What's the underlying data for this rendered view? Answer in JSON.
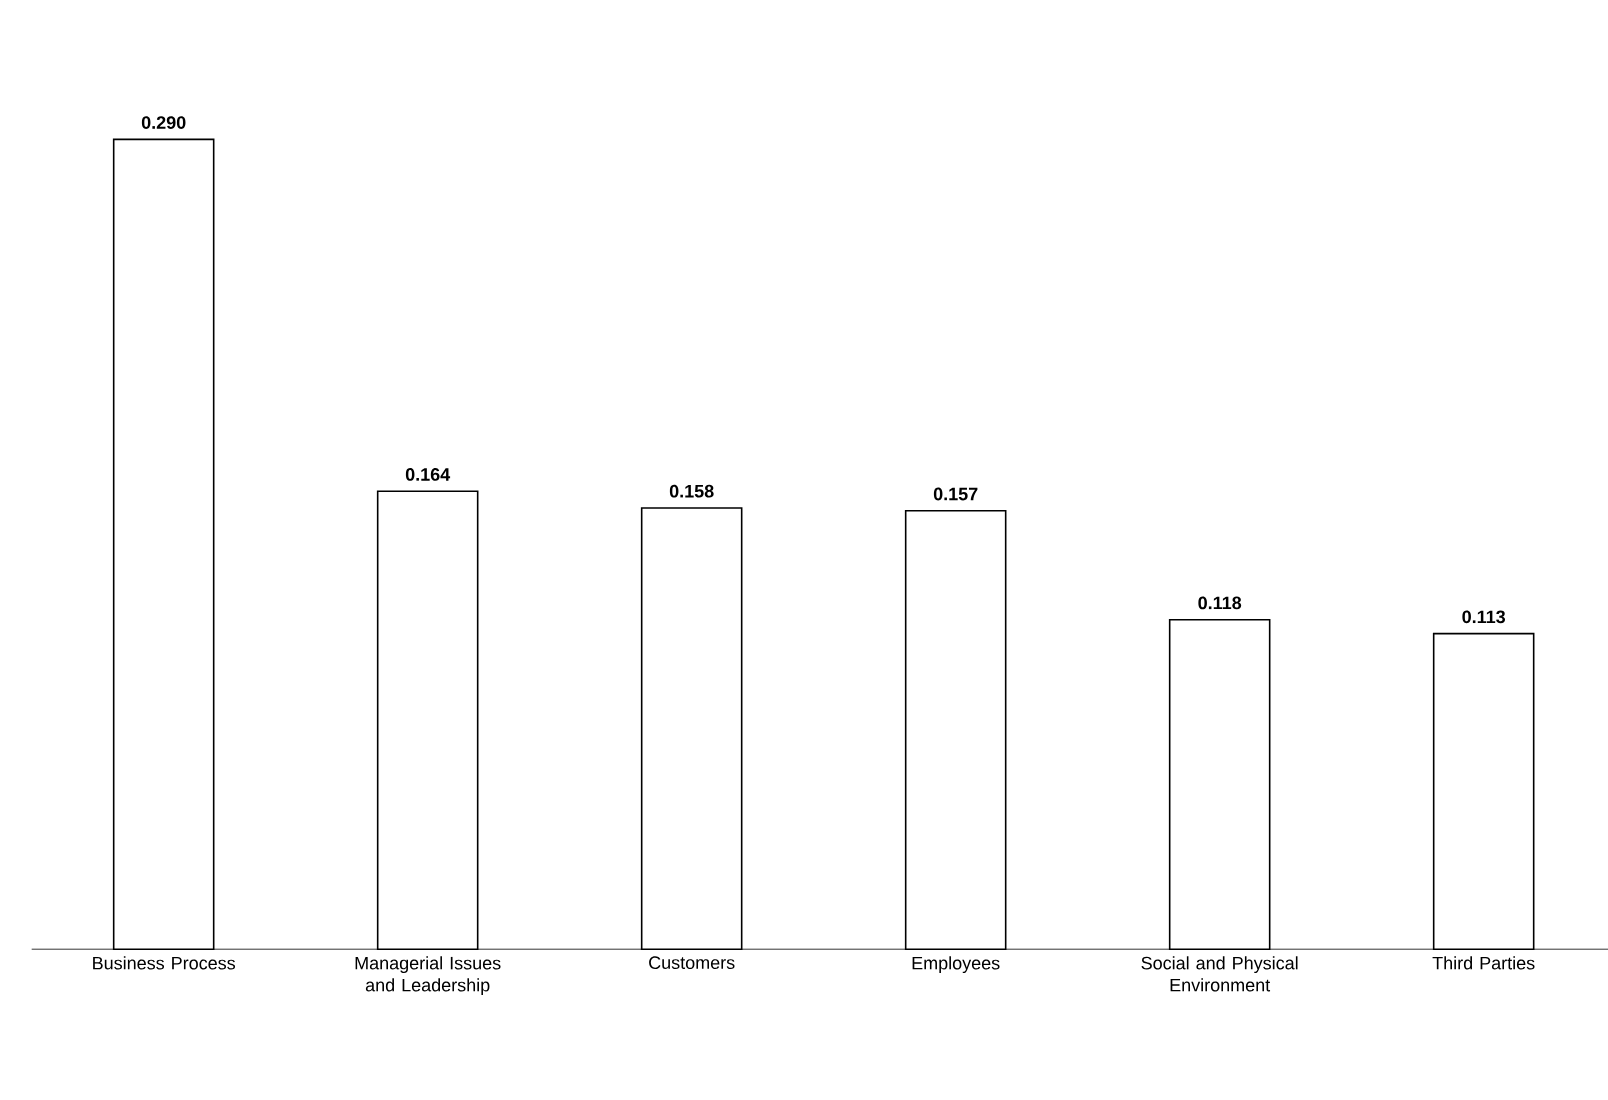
{
  "chart_data": {
    "type": "bar",
    "categories": [
      "Business Process",
      "Managerial Issues and Leadership",
      "Customers",
      "Employees",
      "Social and Physical Environment",
      "Third Parties"
    ],
    "values": [
      0.29,
      0.164,
      0.158,
      0.157,
      0.118,
      0.113
    ],
    "value_labels": [
      "0.290",
      "0.164",
      "0.158",
      "0.157",
      "0.118",
      "0.113"
    ],
    "color": "#ffffff",
    "tick_labels": "x"
  }
}
